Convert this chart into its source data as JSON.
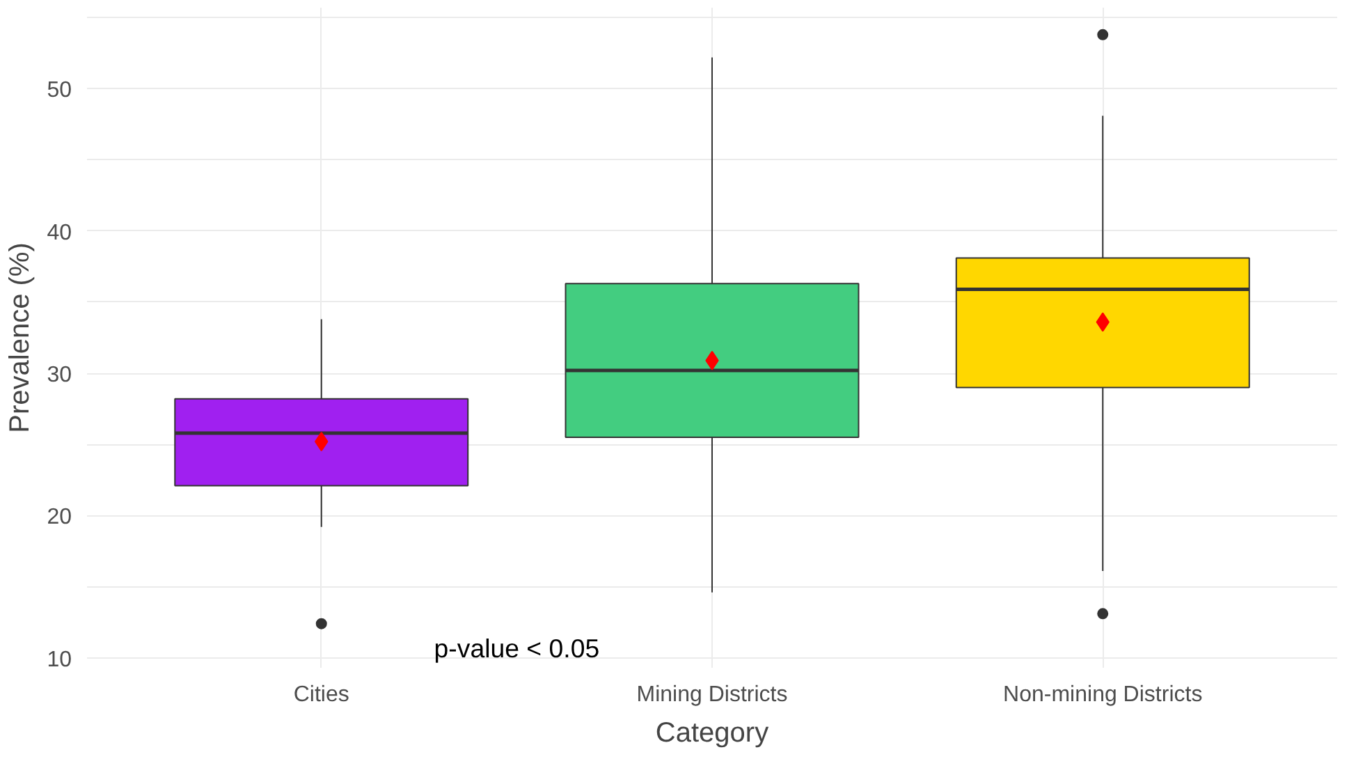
{
  "chart_data": {
    "type": "box",
    "xlabel": "Category",
    "ylabel": "Prevalence (%)",
    "categories": [
      "Cities",
      "Mining Districts",
      "Non-mining Districts"
    ],
    "colors": [
      "#a020f0",
      "#43cd80",
      "#ffd700"
    ],
    "boxes": [
      {
        "low": 19.2,
        "q1": 22.1,
        "median": 25.8,
        "q3": 28.2,
        "high": 33.8,
        "mean": 25.2,
        "outliers": [
          12.4
        ]
      },
      {
        "low": 14.6,
        "q1": 25.5,
        "median": 30.2,
        "q3": 36.3,
        "high": 52.2,
        "mean": 30.9
      },
      {
        "low": 16.1,
        "q1": 29.0,
        "median": 35.9,
        "q3": 38.1,
        "high": 48.1,
        "mean": 33.6,
        "outliers": [
          53.8,
          13.1
        ]
      }
    ],
    "ylim": [
      9.3,
      55.7
    ],
    "yticks": [
      10,
      {
        "value": 15,
        "label": null
      },
      20,
      {
        "value": 25,
        "label": null
      },
      30,
      {
        "value": 35,
        "label": null
      },
      40,
      {
        "value": 45,
        "label": null
      },
      50,
      {
        "value": 55,
        "label": null
      }
    ],
    "grid": true,
    "annotations": [
      "p-value < 0.05"
    ]
  }
}
